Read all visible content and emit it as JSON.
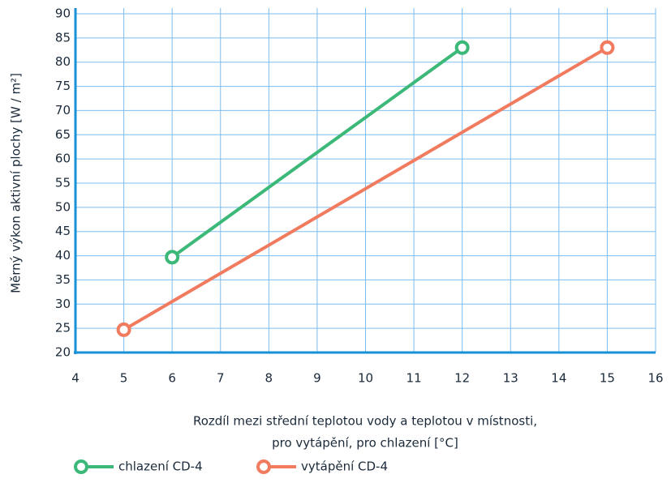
{
  "chart_data": {
    "type": "line",
    "xlabel": [
      "Rozdíl mezi střední teplotou vody a teplotou v místnosti,",
      "pro vytápění, pro chlazení [°C]"
    ],
    "ylabel": "Měrný výkon aktivní plochy [W / m²]",
    "xlim": [
      4,
      16
    ],
    "xticks": [
      4,
      5,
      6,
      7,
      8,
      9,
      10,
      11,
      12,
      13,
      14,
      15,
      16
    ],
    "ylim": [
      20,
      90
    ],
    "yticks": [
      20,
      25,
      30,
      35,
      40,
      45,
      50,
      55,
      60,
      65,
      70,
      75,
      80,
      85,
      90
    ],
    "grid": true,
    "series": [
      {
        "name": "chlazení CD-4",
        "color": "#3cb878",
        "x": [
          6,
          12
        ],
        "values": [
          39.7,
          83
        ]
      },
      {
        "name": "vytápění CD-4",
        "color": "#f07b5f",
        "x": [
          5,
          15
        ],
        "values": [
          24.7,
          83
        ]
      }
    ]
  }
}
